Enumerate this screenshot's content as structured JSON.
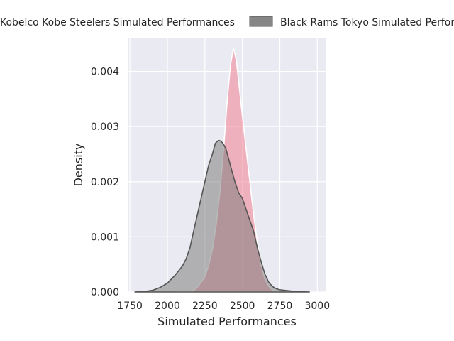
{
  "chart_data": {
    "type": "area",
    "xlabel": "Simulated Performances",
    "ylabel": "Density",
    "xlim": [
      1740,
      3060
    ],
    "ylim": [
      0,
      0.0046
    ],
    "x_ticks": [
      1750,
      2000,
      2250,
      2500,
      2750,
      3000
    ],
    "x_tick_labels": [
      "1750",
      "2000",
      "2250",
      "2500",
      "2750",
      "3000"
    ],
    "y_ticks": [
      0,
      0.001,
      0.002,
      0.003,
      0.004
    ],
    "y_tick_labels": [
      "0.000",
      "0.001",
      "0.002",
      "0.003",
      "0.004"
    ],
    "grid": true,
    "legend_position": "top",
    "series": [
      {
        "name": "Kobelco Kobe Steelers Simulated Performances",
        "color": "#f08090",
        "x": [
          2060,
          2150,
          2180,
          2200,
          2220,
          2250,
          2275,
          2300,
          2325,
          2350,
          2375,
          2400,
          2420,
          2440,
          2460,
          2480,
          2500,
          2525,
          2550,
          2575,
          2600,
          2625,
          2650,
          2675,
          2700,
          2720,
          2760
        ],
        "y": [
          0,
          1e-05,
          4e-05,
          9e-05,
          0.00016,
          0.00028,
          0.00048,
          0.00077,
          0.0012,
          0.0018,
          0.0026,
          0.0035,
          0.0041,
          0.00443,
          0.0042,
          0.0037,
          0.0032,
          0.0026,
          0.002,
          0.0014,
          0.0009,
          0.0005,
          0.00024,
          0.00011,
          4e-05,
          1e-05,
          0
        ]
      },
      {
        "name": "Black Rams Tokyo Simulated Performances",
        "color": "#808080",
        "x": [
          1780,
          1850,
          1900,
          1950,
          2000,
          2050,
          2100,
          2125,
          2150,
          2175,
          2200,
          2225,
          2250,
          2275,
          2300,
          2320,
          2340,
          2355,
          2370,
          2390,
          2410,
          2430,
          2450,
          2475,
          2500,
          2525,
          2550,
          2575,
          2600,
          2625,
          2650,
          2675,
          2700,
          2725,
          2750,
          2800,
          2850,
          2900,
          2950
        ],
        "y": [
          0,
          1e-05,
          3e-05,
          8e-05,
          0.00016,
          0.0003,
          0.00047,
          0.0006,
          0.0008,
          0.0011,
          0.0014,
          0.0017,
          0.002,
          0.0023,
          0.0025,
          0.0027,
          0.00275,
          0.00274,
          0.0027,
          0.0026,
          0.0024,
          0.0022,
          0.002,
          0.0018,
          0.0017,
          0.0015,
          0.0013,
          0.0011,
          0.0008,
          0.00055,
          0.00033,
          0.00018,
          0.0001,
          6e-05,
          4e-05,
          2.5e-05,
          1e-05,
          5e-06,
          0
        ]
      }
    ]
  }
}
